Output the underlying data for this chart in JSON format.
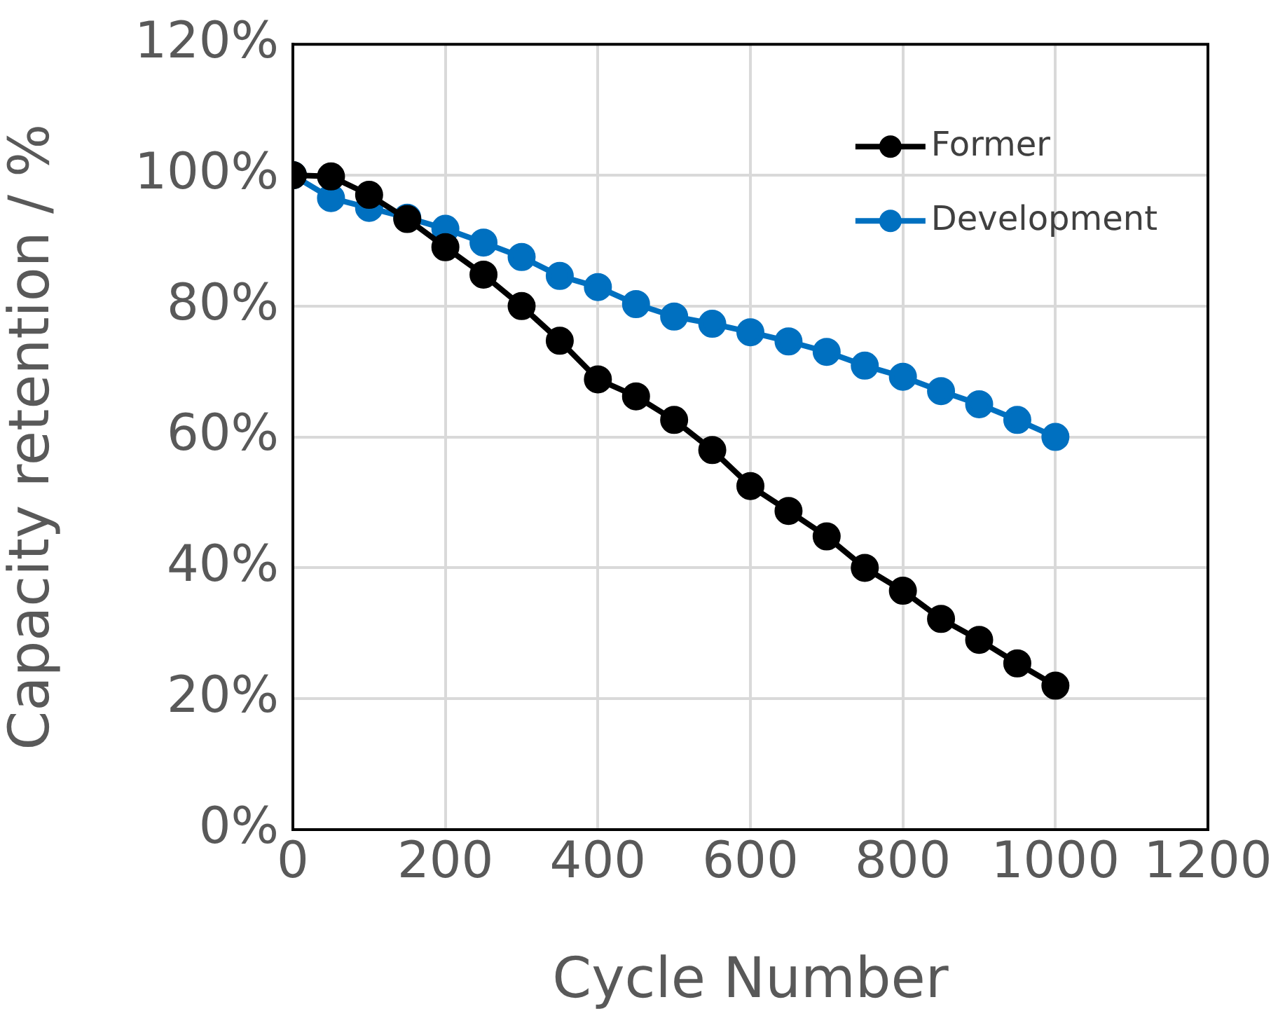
{
  "chart_data": {
    "type": "line",
    "xlabel": "Cycle Number",
    "ylabel": "Capacity retention / %",
    "x": [
      0,
      50,
      100,
      150,
      200,
      250,
      300,
      350,
      400,
      450,
      500,
      550,
      600,
      650,
      700,
      750,
      800,
      850,
      900,
      950,
      1000
    ],
    "series": [
      {
        "name": "Former",
        "color": "#000000",
        "values": [
          100,
          99.8,
          97,
          93.3,
          89,
          84.8,
          80,
          74.7,
          68.8,
          66.2,
          62.6,
          58,
          52.5,
          48.7,
          44.8,
          40,
          36.5,
          32.2,
          29,
          25.4,
          22
        ]
      },
      {
        "name": "Development",
        "color": "#0070c0",
        "values": [
          100,
          96.5,
          95,
          93.5,
          91.8,
          89.7,
          87.5,
          84.6,
          82.9,
          80.3,
          78.4,
          77.3,
          76,
          74.6,
          73,
          70.9,
          69.2,
          67,
          65,
          62.6,
          60
        ]
      }
    ],
    "xlim": [
      0,
      1200
    ],
    "xticks": [
      0,
      200,
      400,
      600,
      800,
      1000,
      1200
    ],
    "ylim": [
      0,
      120
    ],
    "yticks": [
      {
        "value": 0,
        "label": "0%"
      },
      {
        "value": 20,
        "label": "20%"
      },
      {
        "value": 40,
        "label": "40%"
      },
      {
        "value": 60,
        "label": "60%"
      },
      {
        "value": 80,
        "label": "80%"
      },
      {
        "value": 100,
        "label": "100%"
      },
      {
        "value": 120,
        "label": "120%"
      }
    ],
    "grid": true,
    "legend": "top right",
    "marker": "circle",
    "line_style": "solid"
  }
}
